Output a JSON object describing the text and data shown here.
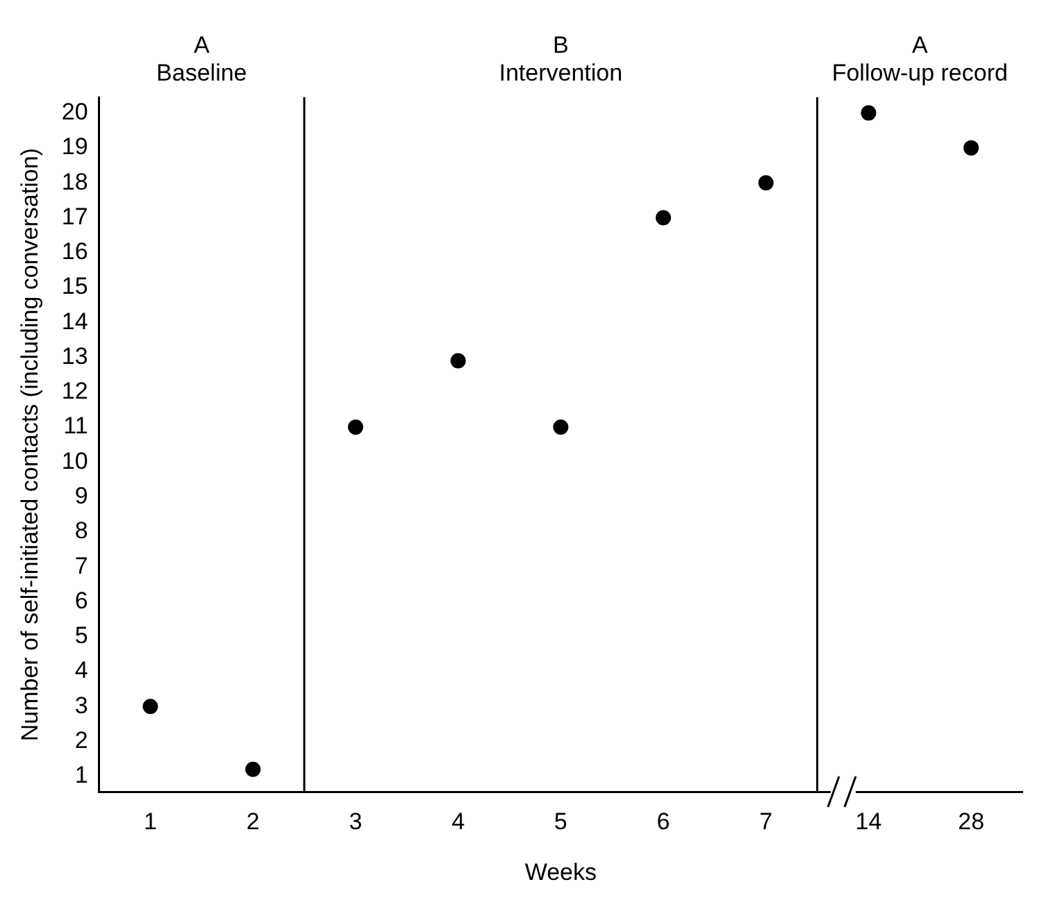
{
  "chart_data": {
    "type": "scatter",
    "xlabel": "Weeks",
    "ylabel": "Number of self-initiated contacts (including conversation)",
    "categories": [
      "1",
      "2",
      "3",
      "4",
      "5",
      "6",
      "7",
      "14",
      "28"
    ],
    "values": [
      3,
      1.2,
      11,
      12.9,
      11,
      17,
      18,
      20,
      19
    ],
    "color": "#000000",
    "marker": "circle",
    "grid": false,
    "legend": false,
    "ylim": [
      0.55,
      20.45
    ],
    "yticks": [
      1,
      2,
      3,
      4,
      5,
      6,
      7,
      8,
      9,
      10,
      11,
      12,
      13,
      14,
      15,
      16,
      17,
      18,
      19,
      20
    ],
    "annotations": [
      "A\nBaseline",
      "B\nIntervention",
      "A\nFollow-up record"
    ]
  }
}
